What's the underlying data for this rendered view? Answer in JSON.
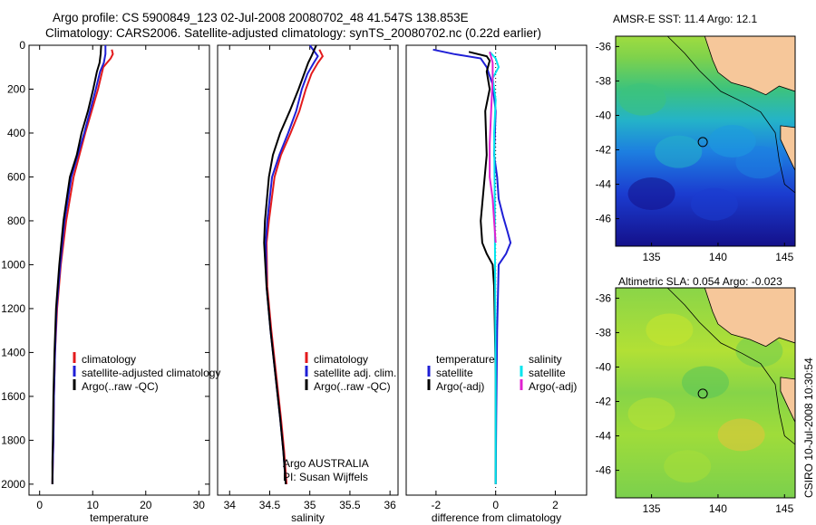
{
  "header": {
    "line1": "Argo profile: CS 5900849_123 02-Jul-2008 20080702_48 41.547S 138.853E",
    "line2": "Climatology: CARS2006. Satellite-adjusted climatology: synTS_20080702.nc (0.22d earlier)"
  },
  "vertical_caption": "CSIRO 10-Jul-2008 10:30:54",
  "chart_data": [
    {
      "type": "line",
      "xlabel": "temperature",
      "ylabel": "",
      "xlim": [
        -2,
        32
      ],
      "ylim": [
        2050,
        0
      ],
      "xticks": [
        0,
        10,
        20,
        30
      ],
      "yticks": [
        0,
        200,
        400,
        600,
        800,
        1000,
        1200,
        1400,
        1600,
        1800,
        2000
      ],
      "series": [
        {
          "name": "climatology",
          "color": "#e31a1c",
          "x": [
            13.6,
            13.8,
            13.4,
            12.0,
            11.0,
            9.8,
            8.6,
            7.5,
            6.4,
            5.0,
            4.0,
            3.3,
            2.9,
            2.7,
            2.6,
            2.5,
            2.4
          ],
          "y": [
            20,
            40,
            60,
            100,
            200,
            300,
            400,
            500,
            600,
            800,
            1000,
            1200,
            1400,
            1600,
            1800,
            1900,
            2000
          ]
        },
        {
          "name": "satellite-adjusted climatology",
          "color": "#1f1fd6",
          "x": [
            12.4,
            12.4,
            12.1,
            11.4,
            10.6,
            9.5,
            8.4,
            7.2,
            6.0,
            4.7,
            3.9,
            3.2,
            2.9,
            2.7,
            2.6,
            2.5,
            2.4
          ],
          "y": [
            0,
            40,
            80,
            120,
            200,
            300,
            400,
            500,
            600,
            800,
            1000,
            1200,
            1400,
            1600,
            1800,
            1900,
            2000
          ]
        },
        {
          "name": "Argo(..raw -QC)",
          "color": "#000000",
          "x": [
            11.6,
            11.5,
            11.3,
            10.8,
            10.1,
            9.1,
            7.9,
            7.0,
            5.7,
            4.5,
            3.7,
            3.1,
            2.8,
            2.6,
            2.5,
            2.4,
            2.4
          ],
          "y": [
            0,
            40,
            80,
            120,
            200,
            300,
            400,
            500,
            600,
            800,
            1000,
            1200,
            1400,
            1600,
            1800,
            1900,
            2000
          ]
        }
      ],
      "legend": [
        "climatology",
        "satellite-adjusted climatology",
        "Argo(..raw -QC)"
      ]
    },
    {
      "type": "line",
      "xlabel": "salinity",
      "ylabel": "",
      "xlim": [
        33.85,
        36.1
      ],
      "ylim": [
        2050,
        0
      ],
      "xticks": [
        34,
        34.5,
        35,
        35.5,
        36
      ],
      "yticks": [],
      "series": [
        {
          "name": "climatology",
          "color": "#e31a1c",
          "x": [
            35.12,
            35.16,
            35.1,
            35.02,
            34.95,
            34.87,
            34.76,
            34.64,
            34.56,
            34.49,
            34.46,
            34.47,
            34.52,
            34.58,
            34.64,
            34.68,
            34.71
          ],
          "y": [
            20,
            50,
            80,
            130,
            200,
            300,
            400,
            500,
            600,
            800,
            900,
            1100,
            1300,
            1500,
            1700,
            1850,
            2000
          ]
        },
        {
          "name": "satellite adj. clim.",
          "color": "#1f1fd6",
          "x": [
            35.0,
            35.1,
            35.05,
            34.97,
            34.9,
            34.83,
            34.73,
            34.62,
            34.53,
            34.47,
            34.45,
            34.46,
            34.51,
            34.57,
            34.63,
            34.67,
            34.7
          ],
          "y": [
            0,
            50,
            80,
            130,
            200,
            300,
            400,
            500,
            600,
            800,
            900,
            1100,
            1300,
            1500,
            1700,
            1850,
            2000
          ]
        },
        {
          "name": "Argo(..raw -QC)",
          "color": "#000000",
          "x": [
            35.08,
            35.02,
            34.98,
            34.93,
            34.86,
            34.75,
            34.63,
            34.54,
            34.49,
            34.44,
            34.43,
            34.46,
            34.51,
            34.57,
            34.63,
            34.67,
            34.7
          ],
          "y": [
            0,
            50,
            80,
            130,
            200,
            300,
            400,
            500,
            600,
            800,
            900,
            1100,
            1300,
            1500,
            1700,
            1850,
            2000
          ]
        }
      ],
      "legend": [
        "climatology",
        "satellite adj. clim.",
        "Argo(..raw -QC)"
      ],
      "annotations": [
        "Argo AUSTRALIA",
        "PI: Susan Wijffels"
      ]
    },
    {
      "type": "line",
      "xlabel": "difference from climatology",
      "ylabel": "",
      "xlim": [
        -3,
        3.05
      ],
      "ylim": [
        2050,
        0
      ],
      "xticks": [
        -2,
        0,
        2
      ],
      "yticks": [],
      "series": [
        {
          "name": "temperature satellite",
          "color": "#1f1fd6",
          "x": [
            -2.1,
            -1.4,
            -0.5,
            -0.3,
            -0.1,
            0.0,
            -0.05,
            0.05,
            0.1,
            0.25,
            0.4,
            0.5,
            0.35,
            0.1,
            0.05,
            0.02,
            0.0
          ],
          "y": [
            20,
            40,
            60,
            100,
            180,
            300,
            500,
            600,
            700,
            780,
            850,
            900,
            950,
            1000,
            1300,
            1700,
            2000
          ]
        },
        {
          "name": "temperature Argo(-adj)",
          "color": "#000000",
          "x": [
            -0.9,
            -0.3,
            -0.2,
            -0.3,
            -0.2,
            -0.35,
            -0.3,
            -0.4,
            -0.5,
            -0.45,
            -0.3,
            -0.1,
            -0.05,
            0.0,
            0.0
          ],
          "y": [
            30,
            50,
            70,
            120,
            200,
            300,
            500,
            650,
            800,
            900,
            950,
            1000,
            1100,
            1500,
            2000
          ]
        },
        {
          "name": "salinity satellite",
          "color": "#00e5ee",
          "x": [
            -0.2,
            0.0,
            0.1,
            -0.1,
            0.0,
            -0.05,
            -0.03,
            -0.02,
            0.0,
            0.0
          ],
          "y": [
            30,
            60,
            100,
            150,
            250,
            400,
            700,
            1000,
            1500,
            2000
          ]
        },
        {
          "name": "salinity Argo(-adj)",
          "color": "#e020d0",
          "x": [
            -0.2,
            -0.1,
            -0.1,
            -0.15,
            -0.2,
            -0.2,
            -0.1,
            -0.05,
            0.0
          ],
          "y": [
            30,
            80,
            150,
            300,
            450,
            600,
            700,
            800,
            900
          ]
        }
      ],
      "legend_headers": [
        "temperature",
        "salinity"
      ],
      "legend": [
        "satellite",
        "Argo(-adj)",
        "satellite",
        "Argo(-adj)"
      ]
    }
  ],
  "maps": [
    {
      "title": "AMSR-E SST: 11.4 Argo: 12.1",
      "xticks": [
        "135",
        "140",
        "145"
      ],
      "yticks": [
        "-36",
        "-38",
        "-40",
        "-42",
        "-44",
        "-46"
      ],
      "xlim": [
        132.3,
        145.8
      ],
      "ylim": [
        -47.6,
        -35.4
      ],
      "argo_marker": {
        "lon": 138.853,
        "lat": -41.547
      }
    },
    {
      "title": "Altimetric SLA: 0.054 Argo: -0.023",
      "xticks": [
        "135",
        "140",
        "145"
      ],
      "yticks": [
        "-36",
        "-38",
        "-40",
        "-42",
        "-44",
        "-46"
      ],
      "xlim": [
        132.3,
        145.8
      ],
      "ylim": [
        -47.6,
        -35.4
      ],
      "argo_marker": {
        "lon": 138.853,
        "lat": -41.547
      }
    }
  ]
}
